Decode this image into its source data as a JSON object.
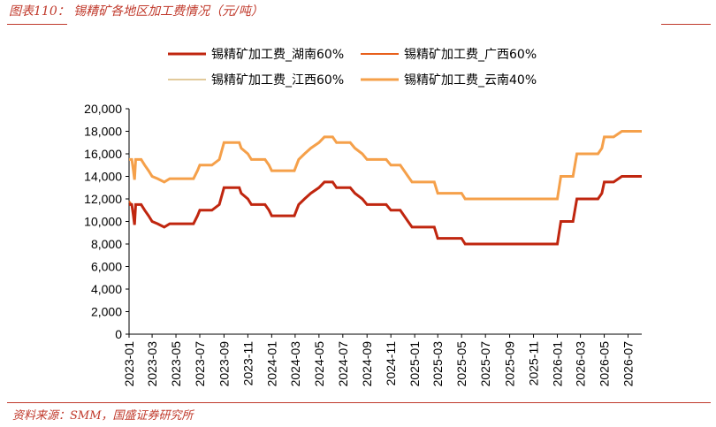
{
  "header": {
    "title": "图表110：  锡精矿各地区加工费情况（元/吨）"
  },
  "footer": {
    "source": "资料来源：SMM，国盛证券研究所"
  },
  "chart_data": {
    "type": "line",
    "title": "图表110：  锡精矿各地区加工费情况（元/吨）",
    "ylim": [
      0,
      20000
    ],
    "yticks": [
      "0",
      "2,000",
      "4,000",
      "6,000",
      "8,000",
      "10,000",
      "12,000",
      "14,000",
      "16,000",
      "18,000",
      "20,000"
    ],
    "xticks": [
      "2023-01",
      "2023-03",
      "2023-05",
      "2023-07",
      "2023-09",
      "2023-11",
      "2024-01",
      "2024-03",
      "2024-05",
      "2024-07",
      "2024-09",
      "2024-11",
      "2025-01",
      "2025-03",
      "2025-05",
      "2025-07",
      "2025-09",
      "2025-11",
      "2026-01",
      "2026-03",
      "2026-05",
      "2026-07"
    ],
    "x_range": [
      "2023-01-01",
      "2026-08-05"
    ],
    "grid": false,
    "legend": "top",
    "series": [
      {
        "name": "锡精矿加工费_湖南60%",
        "color": "#c0260f",
        "width": 3,
        "points": [
          [
            "2023-01-01",
            11500
          ],
          [
            "2023-01-08",
            11500
          ],
          [
            "2023-01-12",
            10500
          ],
          [
            "2023-01-15",
            9700
          ],
          [
            "2023-01-18",
            11500
          ],
          [
            "2023-02-01",
            11500
          ],
          [
            "2023-02-10",
            11000
          ],
          [
            "2023-02-20",
            10500
          ],
          [
            "2023-03-01",
            10000
          ],
          [
            "2023-03-15",
            9800
          ],
          [
            "2023-04-01",
            9500
          ],
          [
            "2023-04-15",
            9800
          ],
          [
            "2023-05-01",
            9800
          ],
          [
            "2023-06-15",
            9800
          ],
          [
            "2023-06-25",
            10500
          ],
          [
            "2023-07-01",
            11000
          ],
          [
            "2023-08-01",
            11000
          ],
          [
            "2023-08-20",
            11500
          ],
          [
            "2023-09-01",
            13000
          ],
          [
            "2023-10-10",
            13000
          ],
          [
            "2023-10-15",
            12500
          ],
          [
            "2023-11-01",
            12000
          ],
          [
            "2023-11-10",
            11500
          ],
          [
            "2023-12-15",
            11500
          ],
          [
            "2023-12-25",
            11000
          ],
          [
            "2024-01-01",
            10500
          ],
          [
            "2024-02-28",
            10500
          ],
          [
            "2024-03-10",
            11500
          ],
          [
            "2024-03-25",
            12000
          ],
          [
            "2024-04-10",
            12500
          ],
          [
            "2024-05-01",
            13000
          ],
          [
            "2024-05-15",
            13500
          ],
          [
            "2024-06-05",
            13500
          ],
          [
            "2024-06-15",
            13000
          ],
          [
            "2024-07-20",
            13000
          ],
          [
            "2024-08-01",
            12500
          ],
          [
            "2024-08-20",
            12000
          ],
          [
            "2024-09-01",
            11500
          ],
          [
            "2024-10-20",
            11500
          ],
          [
            "2024-11-01",
            11000
          ],
          [
            "2024-11-25",
            11000
          ],
          [
            "2024-12-05",
            10500
          ],
          [
            "2024-12-15",
            10000
          ],
          [
            "2024-12-25",
            9500
          ],
          [
            "2025-02-20",
            9500
          ],
          [
            "2025-03-01",
            8500
          ],
          [
            "2025-05-01",
            8500
          ],
          [
            "2025-05-10",
            8000
          ],
          [
            "2026-01-01",
            8000
          ],
          [
            "2026-01-10",
            10000
          ],
          [
            "2026-02-10",
            10000
          ],
          [
            "2026-02-20",
            12000
          ],
          [
            "2026-04-15",
            12000
          ],
          [
            "2026-04-25",
            12500
          ],
          [
            "2026-05-01",
            13500
          ],
          [
            "2026-05-25",
            13500
          ],
          [
            "2026-06-15",
            14000
          ],
          [
            "2026-08-05",
            14000
          ]
        ]
      },
      {
        "name": "锡精矿加工费_广西60%",
        "color": "#e8601c",
        "width": 2,
        "points": [
          [
            "2023-01-01",
            11800
          ],
          [
            "2023-01-08",
            11500
          ],
          [
            "2023-01-12",
            10500
          ],
          [
            "2023-01-15",
            9700
          ],
          [
            "2023-01-18",
            11500
          ],
          [
            "2023-02-01",
            11500
          ],
          [
            "2023-02-10",
            11000
          ],
          [
            "2023-02-20",
            10500
          ],
          [
            "2023-03-01",
            10000
          ],
          [
            "2023-03-15",
            9800
          ],
          [
            "2023-04-01",
            9500
          ],
          [
            "2023-04-15",
            9800
          ],
          [
            "2023-05-01",
            9800
          ],
          [
            "2023-06-15",
            9800
          ],
          [
            "2023-06-25",
            10500
          ],
          [
            "2023-07-01",
            11000
          ],
          [
            "2023-08-01",
            11000
          ],
          [
            "2023-08-20",
            11500
          ],
          [
            "2023-09-01",
            13000
          ],
          [
            "2023-10-10",
            13000
          ],
          [
            "2023-10-15",
            12500
          ],
          [
            "2023-11-01",
            12000
          ],
          [
            "2023-11-10",
            11500
          ],
          [
            "2023-12-15",
            11500
          ],
          [
            "2023-12-25",
            11000
          ],
          [
            "2024-01-01",
            10500
          ],
          [
            "2024-02-28",
            10500
          ],
          [
            "2024-03-10",
            11500
          ],
          [
            "2024-03-25",
            12000
          ],
          [
            "2024-04-10",
            12500
          ],
          [
            "2024-05-01",
            13000
          ],
          [
            "2024-05-15",
            13500
          ],
          [
            "2024-06-05",
            13500
          ],
          [
            "2024-06-15",
            13000
          ],
          [
            "2024-07-20",
            13000
          ],
          [
            "2024-08-01",
            12500
          ],
          [
            "2024-08-20",
            12000
          ],
          [
            "2024-09-01",
            11500
          ],
          [
            "2024-10-20",
            11500
          ],
          [
            "2024-11-01",
            11000
          ],
          [
            "2024-11-25",
            11000
          ],
          [
            "2024-12-05",
            10500
          ],
          [
            "2024-12-15",
            10000
          ],
          [
            "2024-12-25",
            9500
          ],
          [
            "2025-02-20",
            9500
          ],
          [
            "2025-03-01",
            8500
          ],
          [
            "2025-05-01",
            8500
          ],
          [
            "2025-05-10",
            8000
          ],
          [
            "2026-01-01",
            8000
          ],
          [
            "2026-01-10",
            10000
          ],
          [
            "2026-02-10",
            10000
          ],
          [
            "2026-02-20",
            12000
          ],
          [
            "2026-04-15",
            12000
          ],
          [
            "2026-04-25",
            12500
          ],
          [
            "2026-05-01",
            13500
          ],
          [
            "2026-05-25",
            13500
          ],
          [
            "2026-06-15",
            14000
          ],
          [
            "2026-08-05",
            14000
          ]
        ]
      },
      {
        "name": "锡精矿加工费_江西60%",
        "color": "#d9b97a",
        "width": 1.2,
        "points": [
          [
            "2023-01-01",
            11500
          ],
          [
            "2023-01-08",
            11500
          ],
          [
            "2023-01-12",
            10500
          ],
          [
            "2023-01-15",
            9700
          ],
          [
            "2023-01-18",
            11500
          ],
          [
            "2023-02-01",
            11500
          ],
          [
            "2023-02-10",
            11000
          ],
          [
            "2023-02-20",
            10500
          ],
          [
            "2023-03-01",
            10000
          ],
          [
            "2023-03-15",
            9800
          ],
          [
            "2023-04-01",
            9500
          ],
          [
            "2023-04-15",
            9800
          ],
          [
            "2023-05-01",
            9800
          ],
          [
            "2023-06-15",
            9800
          ],
          [
            "2023-06-25",
            10500
          ],
          [
            "2023-07-01",
            11000
          ],
          [
            "2023-08-01",
            11000
          ],
          [
            "2023-08-20",
            11500
          ],
          [
            "2023-09-01",
            13000
          ],
          [
            "2023-10-10",
            13000
          ],
          [
            "2023-10-15",
            12500
          ],
          [
            "2023-11-01",
            12000
          ],
          [
            "2023-11-10",
            11500
          ],
          [
            "2023-12-15",
            11500
          ],
          [
            "2023-12-25",
            11000
          ],
          [
            "2024-01-01",
            10500
          ],
          [
            "2024-02-28",
            10500
          ],
          [
            "2024-03-10",
            11500
          ],
          [
            "2024-03-25",
            12000
          ],
          [
            "2024-04-10",
            12500
          ],
          [
            "2024-05-01",
            13000
          ],
          [
            "2024-05-15",
            13500
          ],
          [
            "2024-06-05",
            13500
          ],
          [
            "2024-06-15",
            13000
          ],
          [
            "2024-07-20",
            13000
          ],
          [
            "2024-08-01",
            12500
          ],
          [
            "2024-08-20",
            12000
          ],
          [
            "2024-09-01",
            11500
          ],
          [
            "2024-10-20",
            11500
          ],
          [
            "2024-11-01",
            11000
          ],
          [
            "2024-11-25",
            11000
          ],
          [
            "2024-12-05",
            10500
          ],
          [
            "2024-12-15",
            10000
          ],
          [
            "2024-12-25",
            9500
          ],
          [
            "2025-02-20",
            9500
          ],
          [
            "2025-03-01",
            8500
          ],
          [
            "2025-05-01",
            8500
          ],
          [
            "2025-05-10",
            8000
          ],
          [
            "2026-01-01",
            8000
          ],
          [
            "2026-01-10",
            10000
          ],
          [
            "2026-02-10",
            10000
          ],
          [
            "2026-02-20",
            12000
          ],
          [
            "2026-04-15",
            12000
          ],
          [
            "2026-04-25",
            12500
          ],
          [
            "2026-05-01",
            13500
          ],
          [
            "2026-05-25",
            13500
          ],
          [
            "2026-06-15",
            14000
          ],
          [
            "2026-08-05",
            14000
          ]
        ]
      },
      {
        "name": "锡精矿加工费_云南40%",
        "color": "#f5a04a",
        "width": 3,
        "points": [
          [
            "2023-01-01",
            15500
          ],
          [
            "2023-01-08",
            15500
          ],
          [
            "2023-01-12",
            14500
          ],
          [
            "2023-01-15",
            13700
          ],
          [
            "2023-01-18",
            15500
          ],
          [
            "2023-02-01",
            15500
          ],
          [
            "2023-02-10",
            15000
          ],
          [
            "2023-02-20",
            14500
          ],
          [
            "2023-03-01",
            14000
          ],
          [
            "2023-03-15",
            13800
          ],
          [
            "2023-04-01",
            13500
          ],
          [
            "2023-04-15",
            13800
          ],
          [
            "2023-05-01",
            13800
          ],
          [
            "2023-06-15",
            13800
          ],
          [
            "2023-06-25",
            14500
          ],
          [
            "2023-07-01",
            15000
          ],
          [
            "2023-08-01",
            15000
          ],
          [
            "2023-08-20",
            15500
          ],
          [
            "2023-09-01",
            17000
          ],
          [
            "2023-10-10",
            17000
          ],
          [
            "2023-10-15",
            16500
          ],
          [
            "2023-11-01",
            16000
          ],
          [
            "2023-11-10",
            15500
          ],
          [
            "2023-12-15",
            15500
          ],
          [
            "2023-12-25",
            15000
          ],
          [
            "2024-01-01",
            14500
          ],
          [
            "2024-02-28",
            14500
          ],
          [
            "2024-03-10",
            15500
          ],
          [
            "2024-03-25",
            16000
          ],
          [
            "2024-04-10",
            16500
          ],
          [
            "2024-05-01",
            17000
          ],
          [
            "2024-05-15",
            17500
          ],
          [
            "2024-06-05",
            17500
          ],
          [
            "2024-06-15",
            17000
          ],
          [
            "2024-07-20",
            17000
          ],
          [
            "2024-08-01",
            16500
          ],
          [
            "2024-08-20",
            16000
          ],
          [
            "2024-09-01",
            15500
          ],
          [
            "2024-10-20",
            15500
          ],
          [
            "2024-11-01",
            15000
          ],
          [
            "2024-11-25",
            15000
          ],
          [
            "2024-12-05",
            14500
          ],
          [
            "2024-12-15",
            14000
          ],
          [
            "2024-12-25",
            13500
          ],
          [
            "2025-02-20",
            13500
          ],
          [
            "2025-03-01",
            12500
          ],
          [
            "2025-05-01",
            12500
          ],
          [
            "2025-05-10",
            12000
          ],
          [
            "2026-01-01",
            12000
          ],
          [
            "2026-01-10",
            14000
          ],
          [
            "2026-02-10",
            14000
          ],
          [
            "2026-02-20",
            16000
          ],
          [
            "2026-04-15",
            16000
          ],
          [
            "2026-04-25",
            16500
          ],
          [
            "2026-05-01",
            17500
          ],
          [
            "2026-05-25",
            17500
          ],
          [
            "2026-06-15",
            18000
          ],
          [
            "2026-08-05",
            18000
          ]
        ]
      }
    ]
  }
}
